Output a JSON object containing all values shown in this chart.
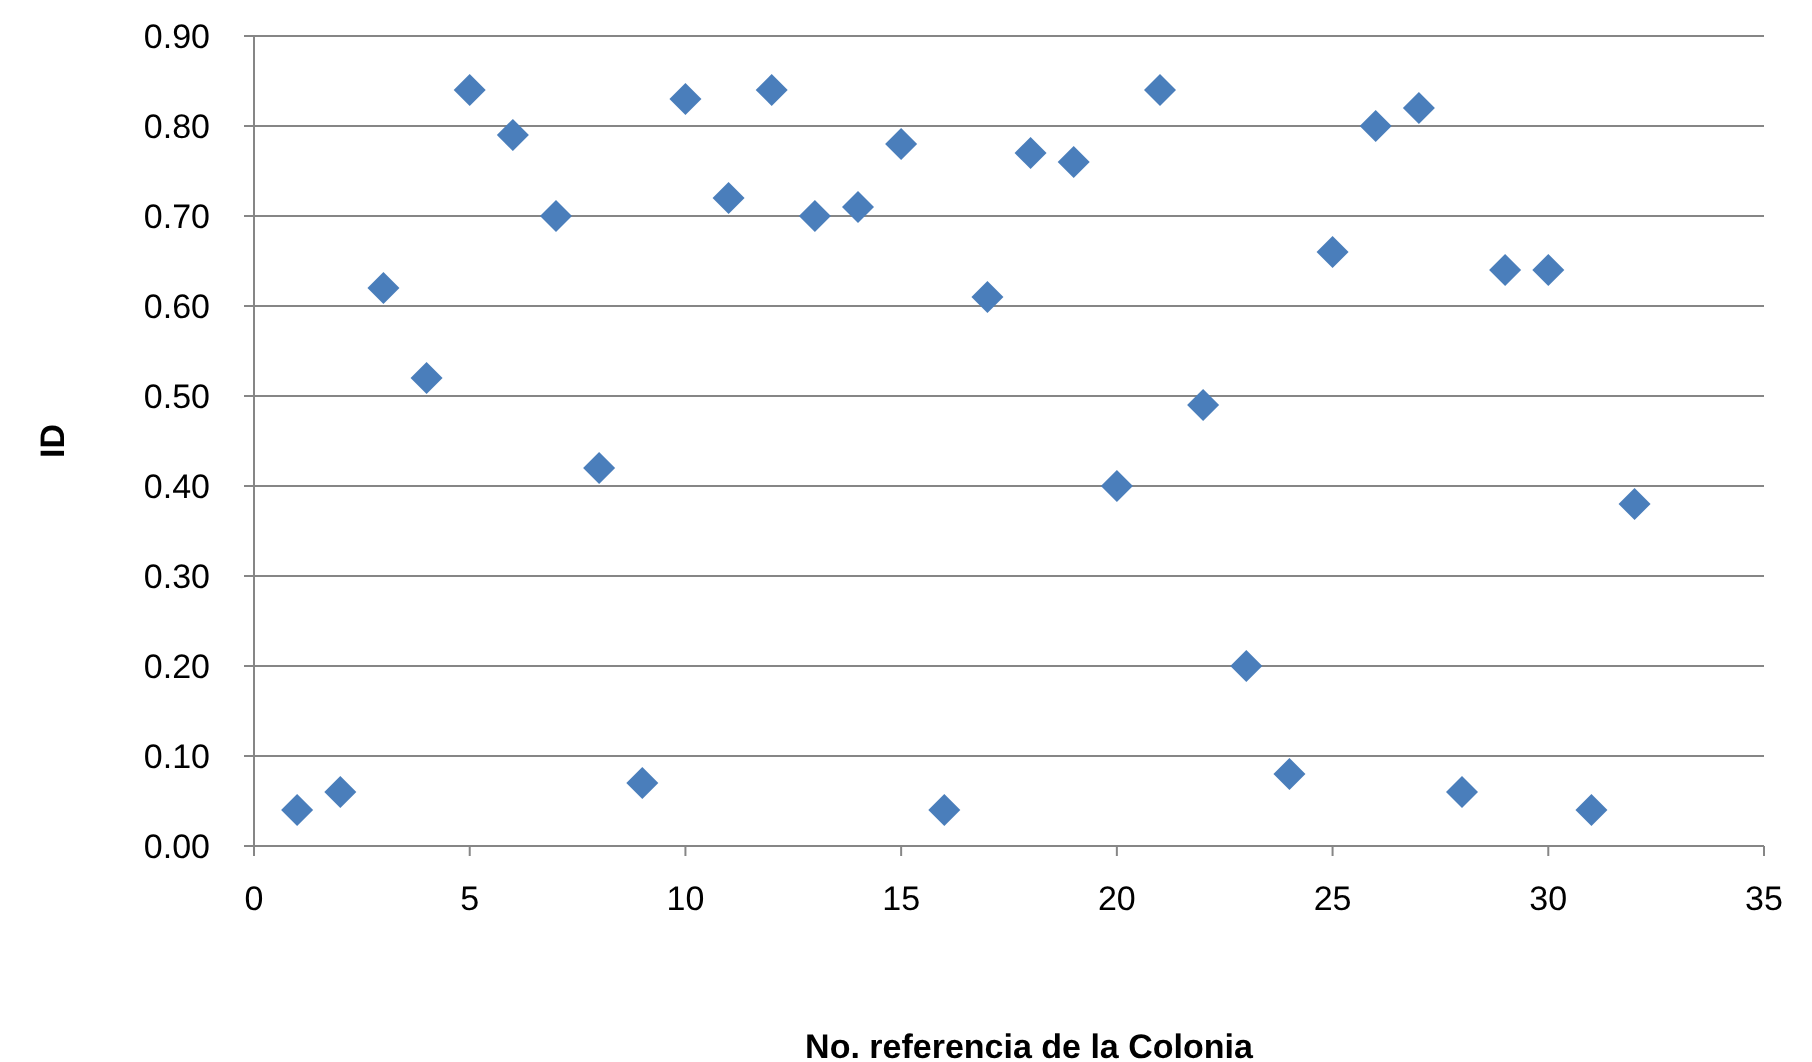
{
  "chart_data": {
    "type": "scatter",
    "xlabel": "No. referencia de la Colonia",
    "ylabel": "ID",
    "x": [
      1,
      2,
      3,
      4,
      5,
      6,
      7,
      8,
      9,
      10,
      11,
      12,
      13,
      14,
      15,
      16,
      17,
      18,
      19,
      20,
      21,
      22,
      23,
      24,
      25,
      26,
      27,
      28,
      29,
      30,
      31,
      32
    ],
    "series": [
      {
        "color": "#4a7ebb",
        "values": [
          0.04,
          0.06,
          0.62,
          0.52,
          0.84,
          0.79,
          0.7,
          0.42,
          0.07,
          0.83,
          0.72,
          0.84,
          0.7,
          0.71,
          0.78,
          0.04,
          0.61,
          0.77,
          0.76,
          0.4,
          0.84,
          0.49,
          0.2,
          0.08,
          0.66,
          0.8,
          0.82,
          0.06,
          0.64,
          0.64,
          0.04,
          0.38
        ]
      }
    ],
    "xlim": [
      0,
      35
    ],
    "xticks": [
      0,
      5,
      10,
      15,
      20,
      25,
      30,
      35
    ],
    "ylim": [
      0,
      0.9
    ],
    "yticks": [
      {
        "value": 0,
        "label": "0.00"
      },
      {
        "value": 0.1,
        "label": "0.10"
      },
      {
        "value": 0.2,
        "label": "0.20"
      },
      {
        "value": 0.3,
        "label": "0.30"
      },
      {
        "value": 0.4,
        "label": "0.40"
      },
      {
        "value": 0.5,
        "label": "0.50"
      },
      {
        "value": 0.6,
        "label": "0.60"
      },
      {
        "value": 0.7,
        "label": "0.70"
      },
      {
        "value": 0.8,
        "label": "0.80"
      },
      {
        "value": 0.9,
        "label": "0.90"
      }
    ],
    "grid": "y",
    "marker": "diamond"
  }
}
